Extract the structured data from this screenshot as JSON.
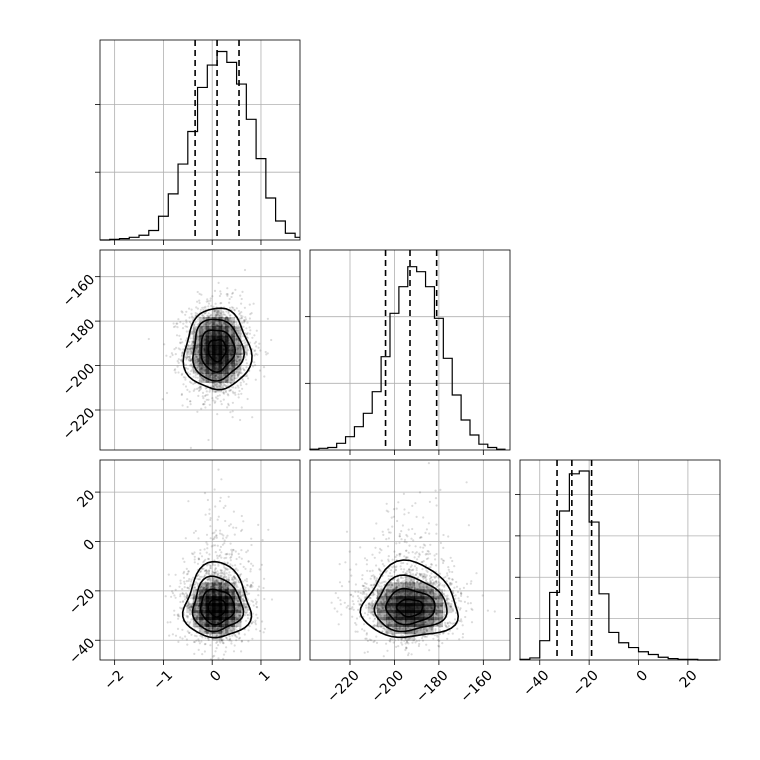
{
  "chart_data": {
    "type": "corner",
    "parameters": [
      {
        "range": [
          -2.3,
          1.8
        ],
        "ticks": [
          -2,
          -1,
          0,
          1
        ],
        "tick_labels": [
          "−2",
          "−1",
          "0",
          "1"
        ],
        "mean": 0.1,
        "sd": 0.33,
        "quantiles": [
          -0.35,
          0.1,
          0.55
        ]
      },
      {
        "range": [
          -238,
          -148
        ],
        "ticks": [
          -220,
          -200,
          -180,
          -160
        ],
        "tick_labels": [
          "−220",
          "−200",
          "−180",
          "−160"
        ],
        "mean": -193,
        "sd": 10.5,
        "quantiles": [
          -204,
          -193,
          -181
        ]
      },
      {
        "range": [
          -48,
          33
        ],
        "ticks": [
          -40,
          -20,
          0,
          20
        ],
        "tick_labels": [
          "−40",
          "−20",
          "0",
          "20"
        ],
        "mean": -27,
        "sd": 7,
        "quantiles": [
          -33,
          -27,
          -19
        ]
      }
    ],
    "histograms": [
      {
        "param": 0,
        "bin_edges": [
          -2.3,
          -2.1,
          -1.9,
          -1.7,
          -1.5,
          -1.3,
          -1.1,
          -0.9,
          -0.7,
          -0.5,
          -0.3,
          -0.1,
          0.1,
          0.3,
          0.5,
          0.7,
          0.9,
          1.1,
          1.3,
          1.5,
          1.7,
          1.8
        ],
        "counts": [
          0,
          1,
          2,
          4,
          7,
          14,
          35,
          68,
          112,
          160,
          225,
          258,
          278,
          262,
          230,
          178,
          120,
          62,
          28,
          10,
          4
        ],
        "ymax": 295,
        "ygrid": [
          100,
          200
        ]
      },
      {
        "param": 1,
        "bin_edges": [
          -238,
          -234,
          -230,
          -226,
          -222,
          -218,
          -214,
          -210,
          -206,
          -202,
          -198,
          -194,
          -190,
          -186,
          -182,
          -178,
          -174,
          -170,
          -166,
          -162,
          -158,
          -154,
          -150
        ],
        "counts": [
          1,
          2,
          3,
          8,
          16,
          28,
          44,
          70,
          112,
          164,
          196,
          220,
          214,
          196,
          158,
          110,
          66,
          36,
          18,
          7,
          3,
          1
        ],
        "ymax": 240,
        "ygrid": [
          80,
          160
        ]
      },
      {
        "param": 2,
        "bin_edges": [
          -48,
          -44,
          -40,
          -36,
          -32,
          -28,
          -24,
          -20,
          -16,
          -12,
          -8,
          -4,
          0,
          4,
          8,
          12,
          16,
          20,
          24,
          28,
          32
        ],
        "counts": [
          1,
          3,
          28,
          98,
          216,
          270,
          274,
          200,
          96,
          40,
          25,
          18,
          12,
          8,
          4,
          2,
          1,
          1,
          0,
          0
        ],
        "ymax": 290,
        "ygrid": [
          60,
          120,
          180,
          240
        ]
      }
    ],
    "pairs": [
      {
        "x_param": 0,
        "y_param": 1,
        "rho": 0.0
      },
      {
        "x_param": 0,
        "y_param": 2,
        "rho": 0.0
      },
      {
        "x_param": 1,
        "y_param": 2,
        "rho": 0.0
      }
    ],
    "grid": true
  }
}
